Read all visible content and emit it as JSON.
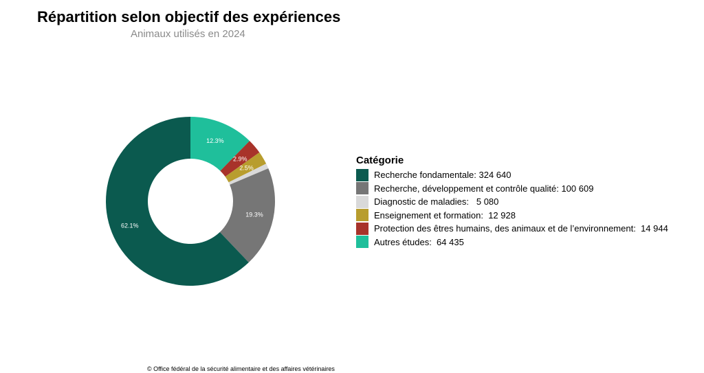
{
  "title": "Répartition selon objectif des expériences",
  "subtitle": "Animaux utilisés en 2024",
  "source": "© Office fédéral de la sécurité alimentaire et des affaires vétérinaires",
  "chart_data": {
    "type": "pie",
    "donut": true,
    "legend_title": "Catégorie",
    "legend_position": "right",
    "slices": [
      {
        "category": "Recherche fondamentale",
        "value": 324640,
        "label": "62.1%",
        "legend": "Recherche fondamentale: 324 640",
        "color": "#0b5a4f"
      },
      {
        "category": "Recherche, développement et contrôle qualité",
        "value": 100609,
        "label": "19.3%",
        "legend": "Recherche, développement et contrôle qualité: 100 609",
        "color": "#767676"
      },
      {
        "category": "Diagnostic de maladies",
        "value": 5080,
        "label": "",
        "legend": "Diagnostic de maladies:   5 080",
        "color": "#d9d9d9"
      },
      {
        "category": "Enseignement et formation",
        "value": 12928,
        "label": "2.5%",
        "legend": "Enseignement et formation:  12 928",
        "color": "#b89d2e"
      },
      {
        "category": "Protection des êtres humains, des animaux et de l’environnement",
        "value": 14944,
        "label": "2.9%",
        "legend": "Protection des êtres humains, des animaux et de l’environnement:  14 944",
        "color": "#a8332a"
      },
      {
        "category": "Autres études",
        "value": 64435,
        "label": "12.3%",
        "legend": "Autres études:  64 435",
        "color": "#1fbf9b"
      }
    ]
  }
}
